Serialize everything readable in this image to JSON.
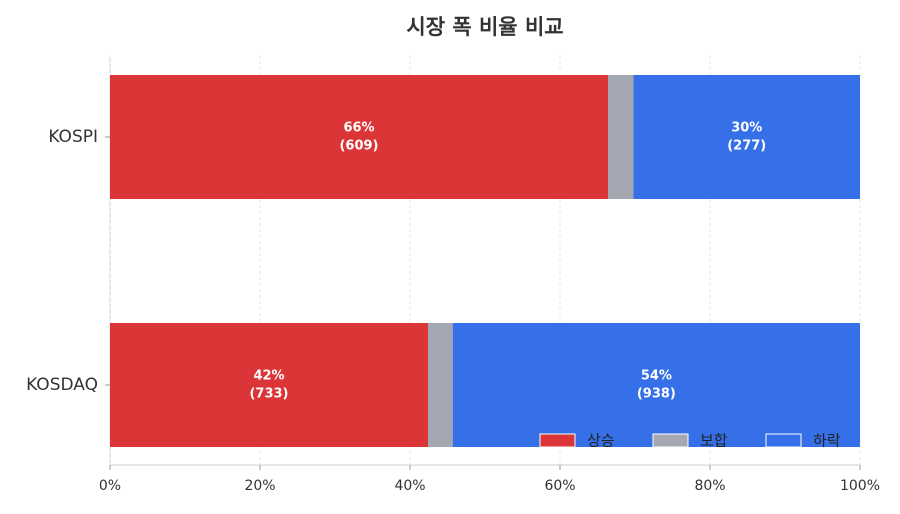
{
  "chart_data": {
    "type": "stacked-barh",
    "title": "시장 폭 비율 비교",
    "categories": [
      "KOSPI",
      "KOSDAQ"
    ],
    "series": [
      {
        "name": "상승",
        "color": "#dc3537",
        "values": [
          66.4,
          42.4
        ],
        "value_labels": [
          "66%",
          "42%"
        ],
        "count_labels": [
          "(609)",
          "(733)"
        ]
      },
      {
        "name": "보합",
        "color": "#a3a8b3",
        "values": [
          3.4,
          3.3
        ]
      },
      {
        "name": "하락",
        "color": "#3570e8",
        "values": [
          30.2,
          54.3
        ],
        "value_labels": [
          "30%",
          "54%"
        ],
        "count_labels": [
          "(277)",
          "(938)"
        ]
      }
    ],
    "xlim": [
      0,
      100
    ],
    "xticks": [
      {
        "value": 0,
        "label": "0%"
      },
      {
        "value": 20,
        "label": "20%"
      },
      {
        "value": 40,
        "label": "40%"
      },
      {
        "value": 60,
        "label": "60%"
      },
      {
        "value": 80,
        "label": "80%"
      },
      {
        "value": 100,
        "label": "100%"
      }
    ],
    "grid": true,
    "legend": "lower-right"
  }
}
